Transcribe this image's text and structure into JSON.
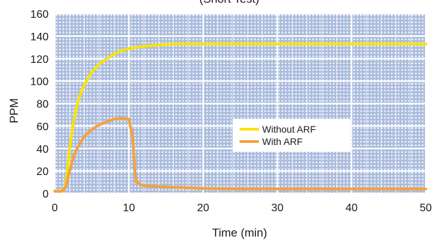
{
  "chart_data": {
    "type": "line",
    "title": "(Short Test)",
    "xlabel": "Time (min)",
    "ylabel": "PPM",
    "xlim": [
      0,
      50
    ],
    "ylim": [
      0,
      160
    ],
    "xticks": [
      0,
      10,
      20,
      30,
      40,
      50
    ],
    "yticks": [
      0,
      20,
      40,
      60,
      80,
      100,
      120,
      140,
      160
    ],
    "grid": true,
    "legend_position": "center-right",
    "series": [
      {
        "name": "Without ARF",
        "color": "#f8e400",
        "x": [
          0,
          1,
          1.5,
          2,
          2.5,
          3,
          3.5,
          4,
          5,
          6,
          7,
          8,
          9,
          10,
          12,
          14,
          16,
          18,
          20,
          25,
          30,
          40,
          50
        ],
        "y": [
          2,
          2,
          8,
          40,
          63,
          78,
          89,
          97,
          108,
          115,
          120,
          124,
          127,
          129,
          131,
          132,
          133,
          133,
          133,
          133,
          133,
          133,
          133
        ]
      },
      {
        "name": "With ARF",
        "color": "#f3a23a",
        "x": [
          0,
          1,
          1.5,
          2,
          2.5,
          3,
          4,
          5,
          6,
          7,
          8,
          9,
          10,
          10.5,
          10.8,
          11,
          11.5,
          12,
          14,
          16,
          18,
          20,
          25,
          30,
          40,
          50
        ],
        "y": [
          2,
          2,
          6,
          20,
          32,
          40,
          51,
          57,
          61,
          64,
          66,
          67,
          66,
          50,
          20,
          10,
          8,
          7,
          6,
          5.5,
          5,
          4.5,
          4,
          4,
          4,
          4
        ]
      }
    ]
  }
}
